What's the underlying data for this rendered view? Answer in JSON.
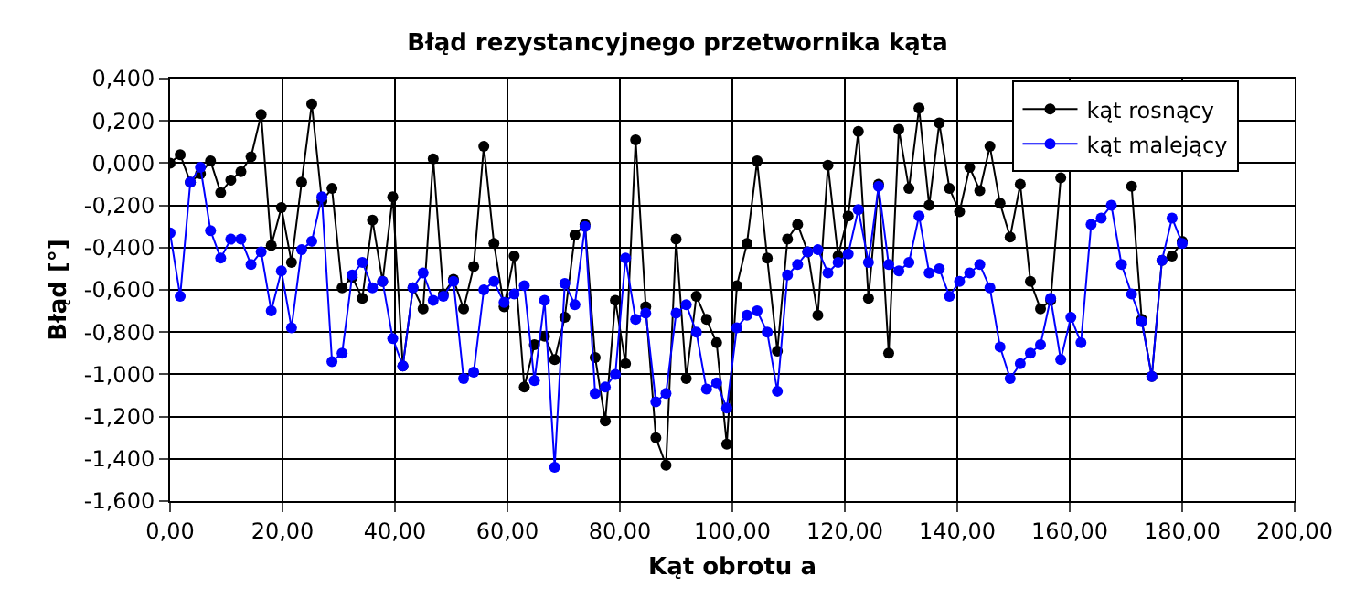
{
  "chart_data": {
    "type": "line",
    "title": "Błąd rezystancyjnego przetwornika kąta",
    "xlabel": "Kąt obrotu a",
    "ylabel": "Błąd [°]",
    "x": [
      0,
      1.8,
      3.6,
      5.4,
      7.2,
      9,
      10.8,
      12.6,
      14.4,
      16.2,
      18,
      19.8,
      21.6,
      23.4,
      25.2,
      27,
      28.8,
      30.6,
      32.4,
      34.2,
      36,
      37.8,
      39.6,
      41.4,
      43.2,
      45,
      46.8,
      48.6,
      50.4,
      52.2,
      54,
      55.8,
      57.6,
      59.4,
      61.2,
      63,
      64.8,
      66.6,
      68.4,
      70.2,
      72,
      73.8,
      75.6,
      77.4,
      79.2,
      81,
      82.8,
      84.6,
      86.4,
      88.2,
      90,
      91.8,
      93.6,
      95.4,
      97.2,
      99,
      100.8,
      102.6,
      104.4,
      106.2,
      108,
      109.8,
      111.6,
      113.4,
      115.2,
      117,
      118.8,
      120.6,
      122.4,
      124.2,
      126,
      127.8,
      129.6,
      131.4,
      133.2,
      135,
      136.8,
      138.6,
      140.4,
      142.2,
      144,
      145.8,
      147.6,
      149.4,
      151.2,
      153,
      154.8,
      156.6,
      158.4,
      160.2,
      162,
      163.8,
      165.6,
      167.4,
      169.2,
      171,
      172.8,
      174.6,
      176.4,
      178.2,
      180
    ],
    "series": [
      {
        "name": "kąt rosnący",
        "color": "#000000",
        "values": [
          0.0,
          0.04,
          -0.09,
          -0.05,
          0.01,
          -0.14,
          -0.08,
          -0.04,
          0.03,
          0.23,
          -0.39,
          -0.21,
          -0.47,
          -0.09,
          0.28,
          -0.18,
          -0.12,
          -0.59,
          -0.54,
          -0.64,
          -0.27,
          -0.56,
          -0.16,
          -0.96,
          -0.59,
          -0.69,
          0.02,
          -0.62,
          -0.55,
          -0.69,
          -0.49,
          0.08,
          -0.38,
          -0.68,
          -0.44,
          -1.06,
          -0.86,
          -0.82,
          -0.93,
          -0.73,
          -0.34,
          -0.29,
          -0.92,
          -1.22,
          -0.65,
          -0.95,
          0.11,
          -0.68,
          -1.3,
          -1.43,
          -0.36,
          -1.02,
          -0.63,
          -0.74,
          -0.85,
          -1.33,
          -0.58,
          -0.38,
          0.01,
          -0.45,
          -0.89,
          -0.36,
          -0.29,
          -0.42,
          -0.72,
          -0.01,
          -0.44,
          -0.25,
          0.15,
          -0.64,
          -0.1,
          -0.9,
          0.16,
          -0.12,
          0.26,
          -0.2,
          0.19,
          -0.12,
          -0.23,
          -0.02,
          -0.13,
          0.08,
          -0.19,
          -0.35,
          -0.1,
          -0.56,
          -0.69,
          -0.65,
          -0.07,
          null,
          null,
          null,
          null,
          null,
          null,
          -0.11,
          -0.74,
          -1.01,
          -0.46,
          -0.44,
          -0.37
        ]
      },
      {
        "name": "kąt malejący",
        "color": "#0000ff",
        "values": [
          -0.33,
          -0.63,
          -0.09,
          -0.02,
          -0.32,
          -0.45,
          -0.36,
          -0.36,
          -0.48,
          -0.42,
          -0.7,
          -0.51,
          -0.78,
          -0.41,
          -0.37,
          -0.16,
          -0.94,
          -0.9,
          -0.53,
          -0.47,
          -0.59,
          -0.56,
          -0.83,
          -0.96,
          -0.59,
          -0.52,
          -0.65,
          -0.63,
          -0.56,
          -1.02,
          -0.99,
          -0.6,
          -0.56,
          -0.66,
          -0.62,
          -0.58,
          -1.03,
          -0.65,
          -1.44,
          -0.57,
          -0.67,
          -0.3,
          -1.09,
          -1.06,
          -1.0,
          -0.45,
          -0.74,
          -0.71,
          -1.13,
          -1.09,
          -0.71,
          -0.67,
          -0.8,
          -1.07,
          -1.04,
          -1.16,
          -0.78,
          -0.72,
          -0.7,
          -0.8,
          -1.08,
          -0.53,
          -0.48,
          -0.42,
          -0.41,
          -0.52,
          -0.47,
          -0.43,
          -0.22,
          -0.47,
          -0.11,
          -0.48,
          -0.51,
          -0.47,
          -0.25,
          -0.52,
          -0.5,
          -0.63,
          -0.56,
          -0.52,
          -0.48,
          -0.59,
          -0.87,
          -1.02,
          -0.95,
          -0.9,
          -0.86,
          -0.64,
          -0.93,
          -0.73,
          -0.85,
          -0.29,
          -0.26,
          -0.2,
          -0.48,
          -0.62,
          -0.75,
          -1.01,
          -0.46,
          -0.26,
          -0.38
        ]
      }
    ],
    "xlim": [
      0,
      200
    ],
    "xticks": [
      {
        "value": 0,
        "label": "0,00"
      },
      {
        "value": 20,
        "label": "20,00"
      },
      {
        "value": 40,
        "label": "40,00"
      },
      {
        "value": 60,
        "label": "60,00"
      },
      {
        "value": 80,
        "label": "80,00"
      },
      {
        "value": 100,
        "label": "100,00"
      },
      {
        "value": 120,
        "label": "120,00"
      },
      {
        "value": 140,
        "label": "140,00"
      },
      {
        "value": 160,
        "label": "160,00"
      },
      {
        "value": 180,
        "label": "180,00"
      },
      {
        "value": 200,
        "label": "200,00"
      }
    ],
    "ylim": [
      -1.6,
      0.4
    ],
    "yticks": [
      {
        "value": 0.4,
        "label": "0,400"
      },
      {
        "value": 0.2,
        "label": "0,200"
      },
      {
        "value": 0,
        "label": "0,000"
      },
      {
        "value": -0.2,
        "label": "-0,200"
      },
      {
        "value": -0.4,
        "label": "-0,400"
      },
      {
        "value": -0.6,
        "label": "-0,600"
      },
      {
        "value": -0.8,
        "label": "-0,800"
      },
      {
        "value": -1.0,
        "label": "-1,000"
      },
      {
        "value": -1.2,
        "label": "-1,200"
      },
      {
        "value": -1.4,
        "label": "-1,400"
      },
      {
        "value": -1.6,
        "label": "-1,600"
      }
    ],
    "grid": true,
    "legend": "top right",
    "marker": "circle",
    "line_style": "solid"
  }
}
